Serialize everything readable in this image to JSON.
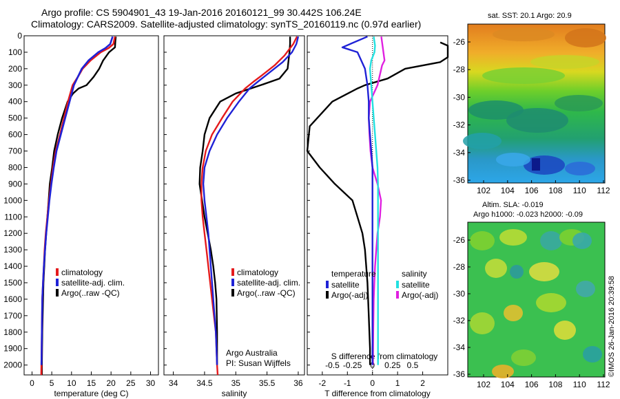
{
  "header": {
    "title_line1": "Argo profile: CS 5904901_43 19-Jan-2016 20160121_99 30.442S 106.24E",
    "title_line2": "Climatology: CARS2009. Satellite-adjusted climatology: synTS_20160119.nc (0.97d earlier)"
  },
  "credit": {
    "line1": "Argo Australia",
    "line2": "PI: Susan Wijffels"
  },
  "watermark": "©IMOS 26-Jan-2016 20:39:58",
  "colors": {
    "climatology": "#e41a1c",
    "satellite": "#1f22d6",
    "argo": "#000000",
    "cyan": "#22e0e0",
    "magenta": "#e020e0"
  },
  "chart_data": [
    {
      "type": "line",
      "xlabel": "temperature (deg C)",
      "xticks": [
        0,
        5,
        10,
        15,
        20,
        25,
        30
      ],
      "xlim": [
        -2,
        32
      ],
      "ylim": [
        0,
        2060
      ],
      "yticks": [
        0,
        100,
        200,
        300,
        400,
        500,
        600,
        700,
        800,
        900,
        1000,
        1100,
        1200,
        1300,
        1400,
        1500,
        1600,
        1700,
        1800,
        1900,
        2000
      ],
      "legend": [
        "climatology",
        "satellite-adj. clim.",
        "Argo(..raw -QC)"
      ],
      "series": [
        {
          "name": "climatology",
          "x": [
            21,
            20.6,
            19.4,
            17.4,
            14.8,
            12.8,
            11.6,
            10.3,
            9.1,
            8.1,
            7.1,
            6.0,
            5.3,
            4.8,
            4.3,
            3.9,
            3.5,
            3.2,
            3.0,
            2.8,
            2.6,
            2.5,
            2.4,
            2.35
          ],
          "y": [
            5,
            50,
            75,
            100,
            150,
            200,
            250,
            300,
            400,
            500,
            600,
            700,
            800,
            900,
            1000,
            1100,
            1200,
            1300,
            1400,
            1500,
            1600,
            1800,
            2000,
            2060
          ]
        },
        {
          "name": "satellite-adj. clim.",
          "x": [
            20.4,
            19.8,
            18.6,
            16.8,
            14.3,
            12.6,
            11.6,
            10.6,
            9.5,
            8.4,
            7.3,
            6.2,
            5.5,
            4.9,
            4.4,
            4.0,
            3.6,
            3.3,
            3.0,
            2.8,
            2.6,
            2.5,
            2.4
          ],
          "y": [
            5,
            50,
            75,
            100,
            150,
            200,
            250,
            300,
            400,
            500,
            600,
            700,
            800,
            900,
            1000,
            1100,
            1200,
            1300,
            1400,
            1500,
            1600,
            1800,
            2000
          ]
        },
        {
          "name": "Argo(..raw -QC)",
          "x": [
            21.2,
            21.1,
            21.0,
            19.5,
            18.0,
            17.0,
            15.6,
            13.8,
            11.8,
            10.4,
            9.0,
            7.6,
            6.5,
            5.6,
            5.1,
            4.5,
            4.2,
            3.9,
            3.6,
            3.3,
            3.1,
            2.9,
            2.8,
            2.6,
            2.5,
            2.5
          ],
          "y": [
            5,
            30,
            70,
            100,
            150,
            200,
            250,
            300,
            320,
            350,
            400,
            500,
            600,
            700,
            800,
            900,
            1000,
            1100,
            1200,
            1300,
            1400,
            1500,
            1600,
            1800,
            2000,
            2060
          ]
        }
      ]
    },
    {
      "type": "line",
      "xlabel": "salinity",
      "xticks": [
        34,
        34.5,
        35,
        35.5,
        36
      ],
      "xlim": [
        33.85,
        36.1
      ],
      "ylim": [
        0,
        2060
      ],
      "legend": [
        "climatology",
        "satellite-adj. clim.",
        "Argo(..raw -QC)"
      ],
      "series": [
        {
          "name": "climatology",
          "x": [
            35.98,
            35.92,
            35.86,
            35.78,
            35.62,
            35.42,
            35.28,
            35.15,
            34.95,
            34.78,
            34.62,
            34.52,
            34.47,
            34.45,
            34.45,
            34.47,
            34.5,
            34.53,
            34.56,
            34.59,
            34.62,
            34.65,
            34.68,
            34.7,
            34.71
          ],
          "y": [
            5,
            50,
            80,
            120,
            180,
            240,
            280,
            320,
            400,
            500,
            600,
            700,
            800,
            900,
            1000,
            1100,
            1200,
            1300,
            1400,
            1500,
            1600,
            1700,
            1800,
            2000,
            2060
          ]
        },
        {
          "name": "satellite-adj. clim.",
          "x": [
            36.0,
            35.97,
            35.9,
            35.75,
            35.55,
            35.35,
            35.22,
            35.05,
            34.86,
            34.7,
            34.58,
            34.5,
            34.48,
            34.5,
            34.53,
            34.56,
            34.58,
            34.6,
            34.62,
            34.64,
            34.66,
            34.68,
            34.7
          ],
          "y": [
            5,
            50,
            100,
            160,
            220,
            280,
            320,
            400,
            500,
            600,
            700,
            800,
            900,
            1000,
            1100,
            1200,
            1300,
            1400,
            1500,
            1600,
            1700,
            1800,
            2000
          ]
        },
        {
          "name": "Argo(..raw -QC)",
          "x": [
            35.87,
            35.87,
            35.86,
            35.83,
            35.7,
            35.4,
            35.0,
            34.75,
            34.58,
            34.5,
            34.47,
            34.43,
            34.42,
            34.46,
            34.5,
            34.55,
            34.6,
            34.64,
            34.67,
            34.69,
            34.7,
            34.7
          ],
          "y": [
            5,
            50,
            100,
            200,
            260,
            300,
            350,
            400,
            500,
            600,
            700,
            800,
            900,
            1000,
            1100,
            1200,
            1300,
            1400,
            1500,
            1600,
            1800,
            2000
          ]
        }
      ]
    },
    {
      "type": "line",
      "xlabel": "T difference from climatology",
      "xlabel_top": "S difference from climatology",
      "xticks": [
        -2,
        -1,
        0,
        1,
        2
      ],
      "xticks_top": [
        "-0.5",
        "-0.25",
        "0",
        "0.25",
        "0.5"
      ],
      "xlim": [
        -2.6,
        3.0
      ],
      "ylim": [
        0,
        2060
      ],
      "legend_temperature_title": "temperature",
      "legend_salinity_title": "salinity",
      "legend_labels": [
        "satellite",
        "Argo(-adj)",
        "satellite",
        "Argo(-adj)"
      ],
      "series": [
        {
          "name": "satellite",
          "x": [
            -0.2,
            -1.2,
            -0.6,
            -0.3,
            -0.2,
            -0.15,
            -0.15,
            -0.1,
            -0.05,
            0,
            0,
            0,
            0,
            0,
            0,
            0,
            0
          ],
          "y": [
            5,
            70,
            100,
            200,
            300,
            400,
            500,
            600,
            700,
            800,
            900,
            1000,
            1200,
            1400,
            1600,
            1800,
            2000
          ]
        },
        {
          "name": "satellite",
          "x": [
            0.05,
            0.1,
            0.08,
            -0.05,
            -0.1,
            -0.05,
            0.0,
            0.05,
            0.1,
            0.15,
            0.2,
            0.22,
            0.22,
            0.22,
            0.22
          ],
          "y": [
            5,
            60,
            100,
            150,
            200,
            300,
            400,
            500,
            600,
            700,
            800,
            900,
            1000,
            1500,
            2000
          ]
        },
        {
          "name": "Argo(-adj)",
          "x": [
            2.7,
            3.0,
            3.0,
            2.7,
            1.3,
            0.6,
            -0.3,
            -0.6,
            -1.6,
            -2.5,
            -2.8,
            -2.1,
            -1.5,
            -0.8,
            -0.6,
            -0.4,
            -0.3,
            -0.2,
            -0.15,
            -0.1,
            -0.1
          ],
          "y": [
            40,
            60,
            130,
            160,
            200,
            260,
            300,
            320,
            400,
            550,
            700,
            800,
            900,
            1000,
            1100,
            1200,
            1300,
            1500,
            1700,
            1900,
            2000
          ]
        },
        {
          "name": "Argo(-adj)",
          "x": [
            0.35,
            0.4,
            0.48,
            0.38,
            0.2,
            -0.1,
            -0.15,
            -0.12,
            -0.08,
            0.0,
            0.2,
            0.34,
            0.3,
            0.2,
            0.1,
            0.05,
            0.03,
            0.02
          ],
          "y": [
            5,
            60,
            150,
            180,
            300,
            400,
            500,
            600,
            700,
            800,
            900,
            1000,
            1100,
            1200,
            1400,
            1600,
            1800,
            2000
          ]
        }
      ]
    }
  ],
  "maps": {
    "top": {
      "title": "sat. SST: 20.1  Argo: 20.9",
      "yticks": [
        "-26",
        "-28",
        "-30",
        "-32",
        "-34",
        "-36"
      ],
      "xticks": [
        "102",
        "104",
        "106",
        "108",
        "110",
        "112"
      ]
    },
    "bottom": {
      "title_line1": "Altim. SLA: -0.019",
      "title_line2": "Argo h1000: -0.023 h2000: -0.09",
      "yticks": [
        "-26",
        "-28",
        "-30",
        "-32",
        "-34",
        "-36"
      ],
      "xticks": [
        "102",
        "104",
        "106",
        "108",
        "110",
        "112"
      ]
    }
  }
}
